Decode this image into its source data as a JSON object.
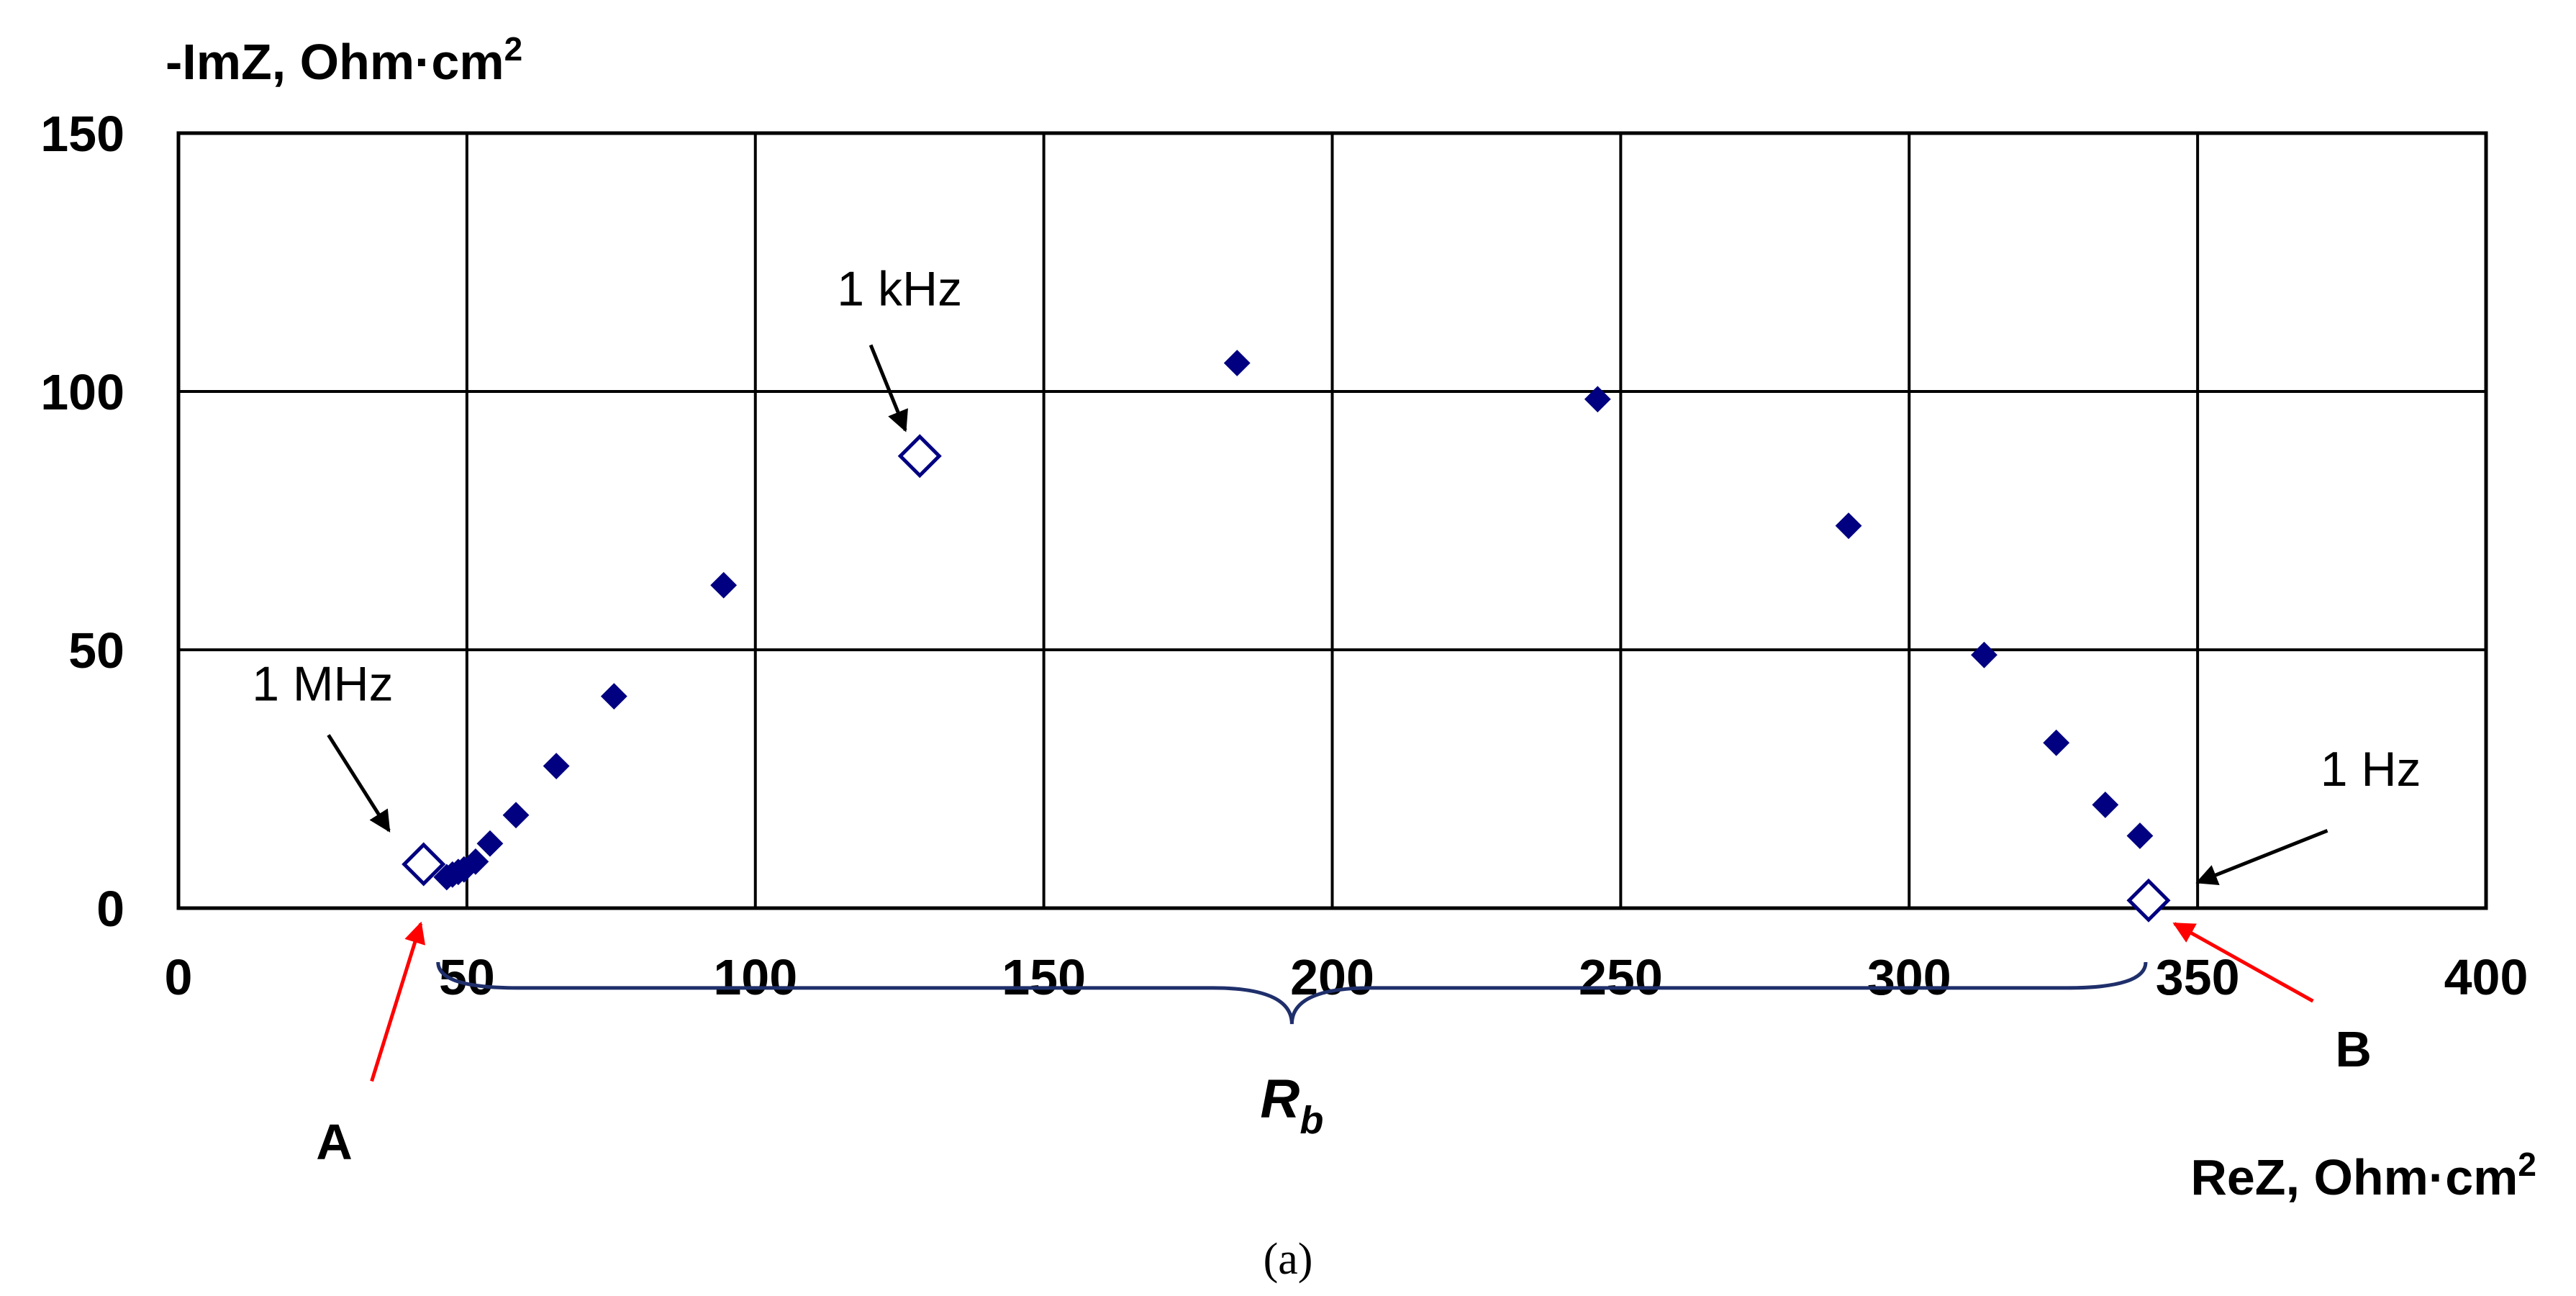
{
  "chart_data": {
    "type": "scatter",
    "title": "",
    "xlabel": "ReZ, Ohm·cm",
    "xlabel_sup": "2",
    "ylabel": "-ImZ, Ohm·cm",
    "ylabel_sup": "2",
    "xlim": [
      0,
      400
    ],
    "ylim": [
      0,
      150
    ],
    "xticks": [
      0,
      50,
      100,
      150,
      200,
      250,
      300,
      350,
      400
    ],
    "yticks": [
      0,
      50,
      100,
      150
    ],
    "grid": true,
    "legend": "none",
    "colors": {
      "marker": "#000080",
      "arrow_black": "#000000",
      "arrow_red": "#ff0000",
      "brace": "#1f2f6b"
    },
    "series": [
      {
        "marker": "filled-diamond",
        "points": [
          {
            "x": 46.5,
            "y": 6
          },
          {
            "x": 47.5,
            "y": 6.5
          },
          {
            "x": 48.5,
            "y": 7
          },
          {
            "x": 49.5,
            "y": 7.5
          },
          {
            "x": 51.5,
            "y": 9
          },
          {
            "x": 54,
            "y": 12.5
          },
          {
            "x": 58.5,
            "y": 18
          },
          {
            "x": 65.5,
            "y": 27.5
          },
          {
            "x": 75.5,
            "y": 41
          },
          {
            "x": 94.5,
            "y": 62.5
          },
          {
            "x": 183.5,
            "y": 105.5
          },
          {
            "x": 246,
            "y": 98.5
          },
          {
            "x": 289.5,
            "y": 74
          },
          {
            "x": 313,
            "y": 49
          },
          {
            "x": 325.5,
            "y": 32
          },
          {
            "x": 334,
            "y": 20
          },
          {
            "x": 340,
            "y": 14
          }
        ]
      },
      {
        "marker": "open-diamond",
        "points": [
          {
            "x": 42.5,
            "y": 8.5
          },
          {
            "x": 128.5,
            "y": 87.5
          },
          {
            "x": 341.5,
            "y": 1.5
          }
        ]
      }
    ],
    "annotations": [
      {
        "text": "1 MHz",
        "label": [
          25,
          43.5
        ],
        "arrow_from": [
          26,
          33.5
        ],
        "arrow_to": [
          36.5,
          15
        ]
      },
      {
        "text": "1 kHz",
        "label": [
          125,
          120
        ],
        "arrow_from": [
          120,
          109
        ],
        "arrow_to": [
          126,
          92.5
        ]
      },
      {
        "text": "1 Hz",
        "label": [
          380,
          27
        ],
        "arrow_from": [
          372.5,
          15
        ],
        "arrow_to": [
          350,
          5
        ]
      }
    ],
    "markers": [
      {
        "text": "A",
        "label": [
          27,
          -45
        ],
        "arrow_from": [
          33.5,
          -33.5
        ],
        "arrow_to": [
          42,
          -3
        ]
      },
      {
        "text": "B",
        "label": [
          377,
          -27
        ],
        "arrow_from": [
          370,
          -18
        ],
        "arrow_to": [
          346,
          -3
        ]
      }
    ],
    "brace": {
      "text": "R",
      "sub": "b",
      "x_start": 45,
      "x_end": 341,
      "depth": 5,
      "height": 12
    }
  },
  "caption": "(a)"
}
